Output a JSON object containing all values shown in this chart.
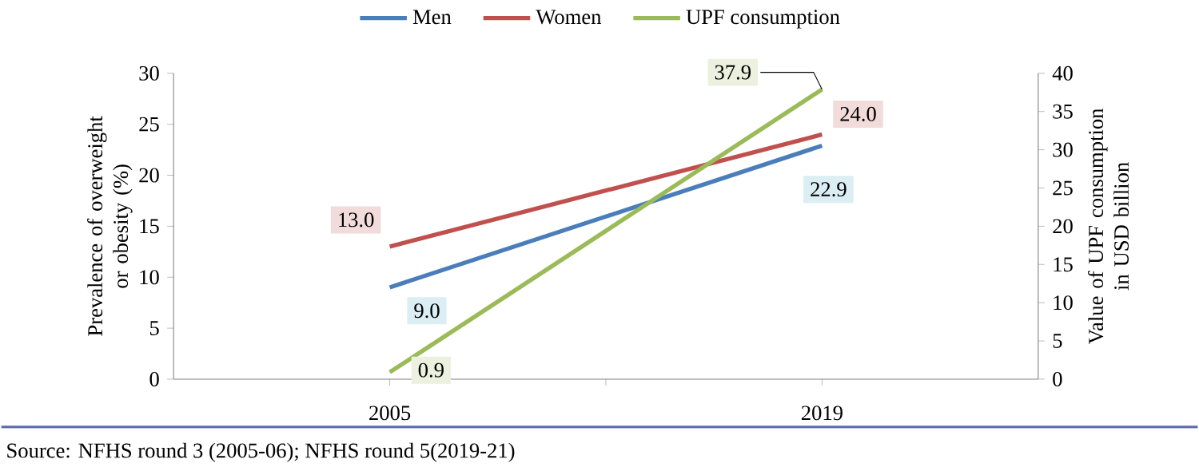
{
  "chart_data": {
    "type": "line",
    "categories": [
      "2005",
      "2019"
    ],
    "ylabel": "Prevalence of overweight or obesity (%)",
    "y2label": "Value of UPF consumption in USD billion",
    "ylim": [
      0,
      30
    ],
    "yticks": [
      0,
      5,
      10,
      15,
      20,
      25,
      30
    ],
    "y2lim": [
      0,
      40
    ],
    "y2ticks": [
      0,
      5,
      10,
      15,
      20,
      25,
      30,
      35,
      40
    ],
    "series": [
      {
        "name": "Men",
        "color": "#4a7ebb",
        "values": [
          9.0,
          22.9
        ],
        "value_labels": [
          "9.0",
          "22.9"
        ]
      },
      {
        "name": "Women",
        "color": "#c0504d",
        "values": [
          13.0,
          24.0
        ],
        "value_labels": [
          "13.0",
          "24.0"
        ]
      },
      {
        "name": "UPF consumption",
        "color": "#9bbb59",
        "values": [
          0.9,
          37.9
        ],
        "value_labels": [
          "0.9",
          "37.9"
        ],
        "axis": "y2"
      }
    ],
    "legend": "top",
    "grid": false,
    "line_style": "solid",
    "annotations": [
      "Source: NFHS round 3 (2005-06); NFHS round 5(2019-21)"
    ]
  }
}
